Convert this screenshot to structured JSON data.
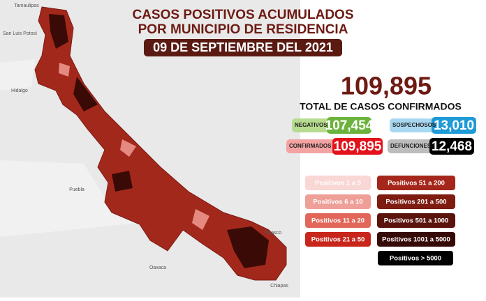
{
  "header": {
    "title_lines": [
      "CASOS POSITIVOS ACUMULADOS",
      "POR MUNICIPIO DE RESIDENCIA"
    ],
    "date": "09 DE SEPTIEMBRE DEL 2021"
  },
  "total": {
    "value": "109,895",
    "label": "TOTAL DE CASOS CONFIRMADOS"
  },
  "stats": [
    {
      "label": "NEGATIVOS",
      "value": "107,454",
      "color": "#6cb33e",
      "label_color": "#b7dc8f"
    },
    {
      "label": "SOSPECHOSOS",
      "value": "13,010",
      "color": "#1e9ad6",
      "label_color": "#a8d8f0"
    },
    {
      "label": "CONFIRMADOS",
      "value": "109,895",
      "color": "#e3111a",
      "label_color": "#f4a3a3"
    },
    {
      "label": "DEFUNCIONES",
      "value": "12,468",
      "color": "#000000",
      "label_color": "#bdbdbd"
    }
  ],
  "legend": [
    {
      "label": "Positivos 1 a 5",
      "color": "#f8d7d4"
    },
    {
      "label": "Positivos 6 a 10",
      "color": "#ee9f97"
    },
    {
      "label": "Positivos 11 a 20",
      "color": "#e2675a"
    },
    {
      "label": "Positivos 21 a 50",
      "color": "#c8261b"
    },
    {
      "label": "Positivos 51 a 200",
      "color": "#a5261a"
    },
    {
      "label": "Positivos 201 a 500",
      "color": "#7e1c12"
    },
    {
      "label": "Positivos 501 a 1000",
      "color": "#5b140d"
    },
    {
      "label": "Positivos 1001 a 5000",
      "color": "#360a06"
    },
    {
      "label": "Positivos > 5000",
      "color": "#000000"
    }
  ],
  "map_labels": [
    "Tamaulipas",
    "San Luis Potosí",
    "Hidalgo",
    "Puebla",
    "Oaxaca",
    "Tabasco",
    "Chiapas"
  ]
}
